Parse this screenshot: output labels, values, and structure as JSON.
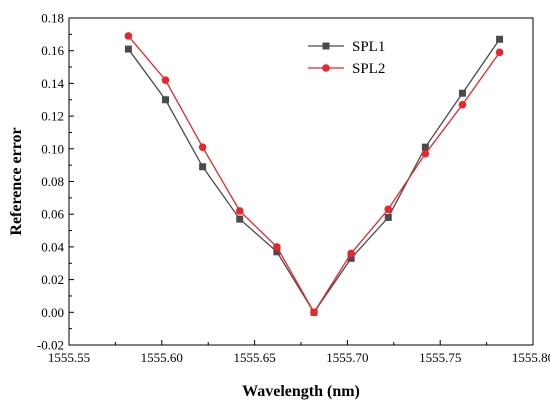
{
  "chart_data": {
    "type": "line",
    "xlabel": "Wavelength (nm)",
    "ylabel": "Reference error",
    "xlim": [
      1555.55,
      1555.8
    ],
    "ylim": [
      -0.02,
      0.18
    ],
    "xticks": [
      "1555.55",
      "1555.60",
      "1555.65",
      "1555.70",
      "1555.75",
      "1555.80"
    ],
    "yticks": [
      "-0.02",
      "0.00",
      "0.02",
      "0.04",
      "0.06",
      "0.08",
      "0.10",
      "0.12",
      "0.14",
      "0.16",
      "0.18"
    ],
    "grid": false,
    "legend_position": "top-right",
    "series": [
      {
        "name": "SPL1",
        "color": "#4a4a4a",
        "marker": "square",
        "x": [
          1555.582,
          1555.602,
          1555.622,
          1555.642,
          1555.662,
          1555.682,
          1555.702,
          1555.722,
          1555.742,
          1555.762,
          1555.782
        ],
        "y": [
          0.161,
          0.13,
          0.089,
          0.057,
          0.037,
          0.0,
          0.033,
          0.058,
          0.101,
          0.134,
          0.167
        ]
      },
      {
        "name": "SPL2",
        "color": "#e8262b",
        "marker": "circle",
        "x": [
          1555.582,
          1555.602,
          1555.622,
          1555.642,
          1555.662,
          1555.682,
          1555.702,
          1555.722,
          1555.742,
          1555.762,
          1555.782
        ],
        "y": [
          0.169,
          0.142,
          0.101,
          0.062,
          0.04,
          0.0,
          0.036,
          0.063,
          0.097,
          0.127,
          0.159
        ]
      }
    ]
  }
}
